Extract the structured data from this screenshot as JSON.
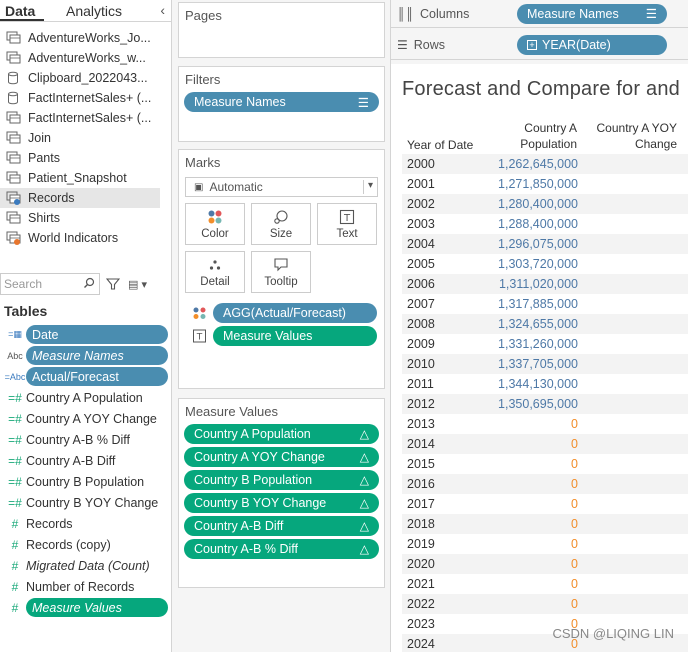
{
  "data_pane": {
    "tabs": [
      "Data",
      "Analytics"
    ],
    "datasources": [
      {
        "label": "AdventureWorks_Jo...",
        "icon": "multi-table-icon"
      },
      {
        "label": "AdventureWorks_w...",
        "icon": "multi-table-icon"
      },
      {
        "label": "Clipboard_2022043...",
        "icon": "cylinder-icon"
      },
      {
        "label": "FactInternetSales+ (...",
        "icon": "cylinder-icon"
      },
      {
        "label": "FactInternetSales+ (...",
        "icon": "multi-table-icon"
      },
      {
        "label": "Join",
        "icon": "multi-table-icon"
      },
      {
        "label": "Pants",
        "icon": "multi-table-icon"
      },
      {
        "label": "Patient_Snapshot",
        "icon": "multi-table-icon"
      },
      {
        "label": "Records",
        "icon": "multi-table-check-icon"
      },
      {
        "label": "Shirts",
        "icon": "multi-table-icon"
      },
      {
        "label": "World Indicators",
        "icon": "multi-table-orange-icon"
      }
    ],
    "search_placeholder": "Search",
    "tables_header": "Tables",
    "fields": [
      {
        "label": "Date",
        "type": "date",
        "style": "blue-pill"
      },
      {
        "label": "Measure Names",
        "type": "abc",
        "style": "blue-pill-italic"
      },
      {
        "label": "Actual/Forecast",
        "type": "abc-calc",
        "style": "blue-pill"
      },
      {
        "label": "Country A Population",
        "type": "measure-calc",
        "style": "plain"
      },
      {
        "label": "Country A YOY Change",
        "type": "measure-calc",
        "style": "plain"
      },
      {
        "label": "Country A-B % Diff",
        "type": "measure-calc",
        "style": "plain"
      },
      {
        "label": "Country A-B Diff",
        "type": "measure-calc",
        "style": "plain"
      },
      {
        "label": "Country B Population",
        "type": "measure-calc",
        "style": "plain"
      },
      {
        "label": "Country B YOY Change",
        "type": "measure-calc",
        "style": "plain"
      },
      {
        "label": "Records",
        "type": "measure",
        "style": "plain"
      },
      {
        "label": "Records (copy)",
        "type": "measure",
        "style": "plain"
      },
      {
        "label": "Migrated Data (Count)",
        "type": "measure",
        "style": "italic"
      },
      {
        "label": "Number of Records",
        "type": "measure",
        "style": "plain"
      },
      {
        "label": "Measure Values",
        "type": "measure",
        "style": "green-pill-italic"
      }
    ]
  },
  "shelves": {
    "pages_label": "Pages",
    "filters_label": "Filters",
    "filters_pill": "Measure Names",
    "marks_label": "Marks",
    "mark_type": "Automatic",
    "mark_buttons": [
      "Color",
      "Size",
      "Text",
      "Detail",
      "Tooltip"
    ],
    "mark_pills": [
      "AGG(Actual/Forecast)",
      "Measure Values"
    ],
    "measure_values_label": "Measure Values",
    "measure_values": [
      "Country A Population",
      "Country A YOY Change",
      "Country B Population",
      "Country B YOY Change",
      "Country A-B Diff",
      "Country A-B % Diff"
    ],
    "columns_label": "Columns",
    "columns_pill": "Measure Names",
    "rows_label": "Rows",
    "rows_pill": "YEAR(Date)"
  },
  "view": {
    "title": "Forecast and Compare for  and",
    "row_header": "Year of Date",
    "col_a_line1": "Country A",
    "col_a_line2": "Population",
    "col_b_line1": "Country A YOY",
    "col_b_line2": "Change",
    "rows": [
      {
        "year": "2000",
        "a": "1,262,645,000"
      },
      {
        "year": "2001",
        "a": "1,271,850,000"
      },
      {
        "year": "2002",
        "a": "1,280,400,000"
      },
      {
        "year": "2003",
        "a": "1,288,400,000"
      },
      {
        "year": "2004",
        "a": "1,296,075,000"
      },
      {
        "year": "2005",
        "a": "1,303,720,000"
      },
      {
        "year": "2006",
        "a": "1,311,020,000"
      },
      {
        "year": "2007",
        "a": "1,317,885,000"
      },
      {
        "year": "2008",
        "a": "1,324,655,000"
      },
      {
        "year": "2009",
        "a": "1,331,260,000"
      },
      {
        "year": "2010",
        "a": "1,337,705,000"
      },
      {
        "year": "2011",
        "a": "1,344,130,000"
      },
      {
        "year": "2012",
        "a": "1,350,695,000"
      },
      {
        "year": "2013",
        "a": "0"
      },
      {
        "year": "2014",
        "a": "0"
      },
      {
        "year": "2015",
        "a": "0"
      },
      {
        "year": "2016",
        "a": "0"
      },
      {
        "year": "2017",
        "a": "0"
      },
      {
        "year": "2018",
        "a": "0"
      },
      {
        "year": "2019",
        "a": "0"
      },
      {
        "year": "2020",
        "a": "0"
      },
      {
        "year": "2021",
        "a": "0"
      },
      {
        "year": "2022",
        "a": "0"
      },
      {
        "year": "2023",
        "a": "0"
      },
      {
        "year": "2024",
        "a": "0"
      }
    ],
    "colors": {
      "actual": "#4e79a7",
      "forecast": "#f28e2b"
    }
  },
  "watermark": "CSDN @LIQING LIN"
}
